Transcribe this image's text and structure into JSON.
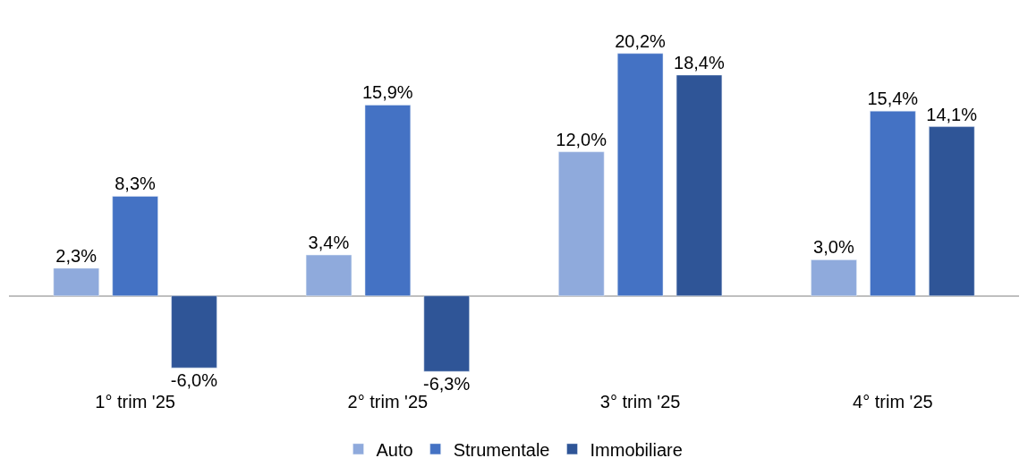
{
  "chart_data": {
    "type": "bar",
    "categories": [
      "1° trim '25",
      "2° trim '25",
      "3° trim '25",
      "4° trim '25"
    ],
    "series": [
      {
        "name": "Auto",
        "color": "#8faadc",
        "values": [
          2.3,
          3.4,
          12.0,
          3.0
        ],
        "value_labels": [
          "2,3%",
          "3,4%",
          "12,0%",
          "3,0%"
        ]
      },
      {
        "name": "Strumentale",
        "color": "#4472c4",
        "values": [
          8.3,
          15.9,
          20.2,
          15.4
        ],
        "value_labels": [
          "8,3%",
          "15,9%",
          "20,2%",
          "15,4%"
        ]
      },
      {
        "name": "Immobiliare",
        "color": "#2f5597",
        "values": [
          -6.0,
          -6.3,
          18.4,
          14.1
        ],
        "value_labels": [
          "-6,0%",
          "-6,3%",
          "18,4%",
          "14,1%"
        ]
      }
    ],
    "legend": "bottom"
  }
}
